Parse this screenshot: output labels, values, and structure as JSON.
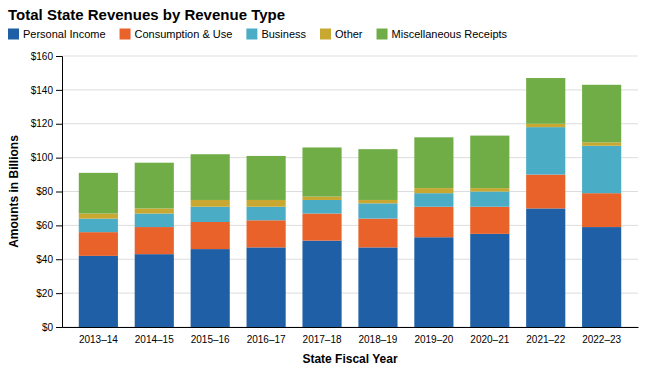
{
  "chart_data": {
    "type": "bar",
    "stacked": true,
    "title": "Total State Revenues by Revenue Type",
    "xlabel": "State Fiscal Year",
    "ylabel": "Amounts in Billions",
    "categories": [
      "2013–14",
      "2014–15",
      "2015–16",
      "2016–17",
      "2017–18",
      "2018–19",
      "2019–20",
      "2020–21",
      "2021–22",
      "2022–23"
    ],
    "series": [
      {
        "name": "Personal Income",
        "color": "#1F5FA6",
        "values": [
          42,
          43,
          46,
          47,
          51,
          47,
          53,
          55,
          70,
          59
        ]
      },
      {
        "name": "Consumption & Use",
        "color": "#E8622A",
        "values": [
          14,
          16,
          16,
          16,
          16,
          17,
          18,
          16,
          20,
          20
        ]
      },
      {
        "name": "Business",
        "color": "#4BACC6",
        "values": [
          8,
          8,
          9,
          8,
          8,
          9,
          8,
          9,
          28,
          28
        ]
      },
      {
        "name": "Other",
        "color": "#C8A831",
        "values": [
          3,
          3,
          4,
          4,
          2,
          2,
          3,
          2,
          2,
          2
        ]
      },
      {
        "name": "Miscellaneous Receipts",
        "color": "#70AD47",
        "values": [
          24,
          27,
          27,
          26,
          29,
          30,
          30,
          31,
          27,
          34
        ]
      }
    ],
    "ylim": [
      0,
      160
    ],
    "yticks": [
      {
        "value": 0,
        "label": "$0"
      },
      {
        "value": 20,
        "label": "$20"
      },
      {
        "value": 40,
        "label": "$40"
      },
      {
        "value": 60,
        "label": "$60"
      },
      {
        "value": 80,
        "label": "$80"
      },
      {
        "value": 100,
        "label": "$100"
      },
      {
        "value": 120,
        "label": "$120"
      },
      {
        "value": 140,
        "label": "$140"
      },
      {
        "value": 160,
        "label": "$160"
      }
    ],
    "grid": true,
    "legend": "top"
  }
}
